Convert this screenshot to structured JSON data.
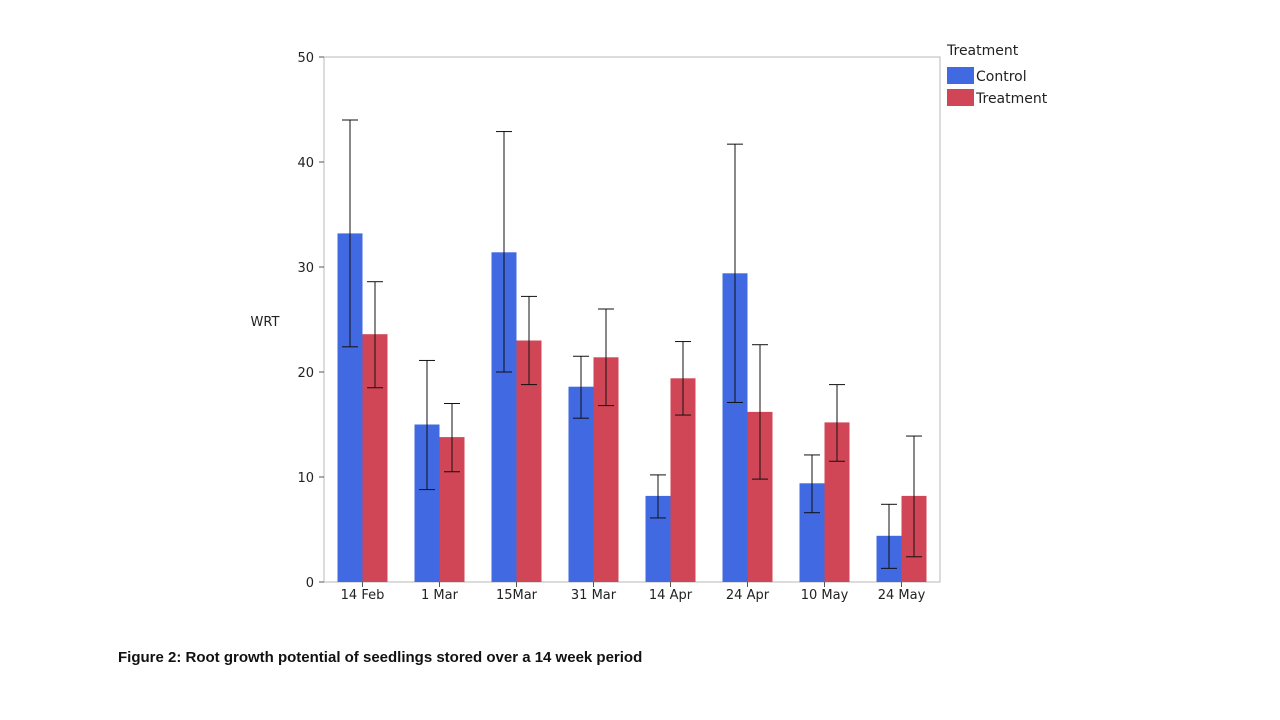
{
  "caption": "Figure 2: Root growth potential of seedlings stored over a 14 week period",
  "chart_data": {
    "type": "bar",
    "ylabel": "WRT",
    "xlabel": "",
    "ylim": [
      0,
      50
    ],
    "yticks": [
      0,
      10,
      20,
      30,
      40,
      50
    ],
    "categories": [
      "14 Feb",
      "1 Mar",
      "15Mar",
      "31 Mar",
      "14 Apr",
      "24 Apr",
      "10 May",
      "24 May"
    ],
    "series": [
      {
        "name": "Control",
        "color": "#4169e1",
        "values": [
          33.2,
          15.0,
          31.4,
          18.6,
          8.2,
          29.4,
          9.4,
          4.4
        ],
        "err_low": [
          22.4,
          8.8,
          20.0,
          15.6,
          6.1,
          17.1,
          6.6,
          1.3
        ],
        "err_high": [
          44.0,
          21.1,
          42.9,
          21.5,
          10.2,
          41.7,
          12.1,
          7.4
        ]
      },
      {
        "name": "Treatment",
        "color": "#d14656",
        "values": [
          23.6,
          13.8,
          23.0,
          21.4,
          19.4,
          16.2,
          15.2,
          8.2
        ],
        "err_low": [
          18.5,
          10.5,
          18.8,
          16.8,
          15.9,
          9.8,
          11.5,
          2.4
        ],
        "err_high": [
          28.6,
          17.0,
          27.2,
          26.0,
          22.9,
          22.6,
          18.8,
          13.9
        ]
      }
    ],
    "legend": {
      "title": "Treatment",
      "placement": "top-right-outside"
    },
    "grid": false
  }
}
